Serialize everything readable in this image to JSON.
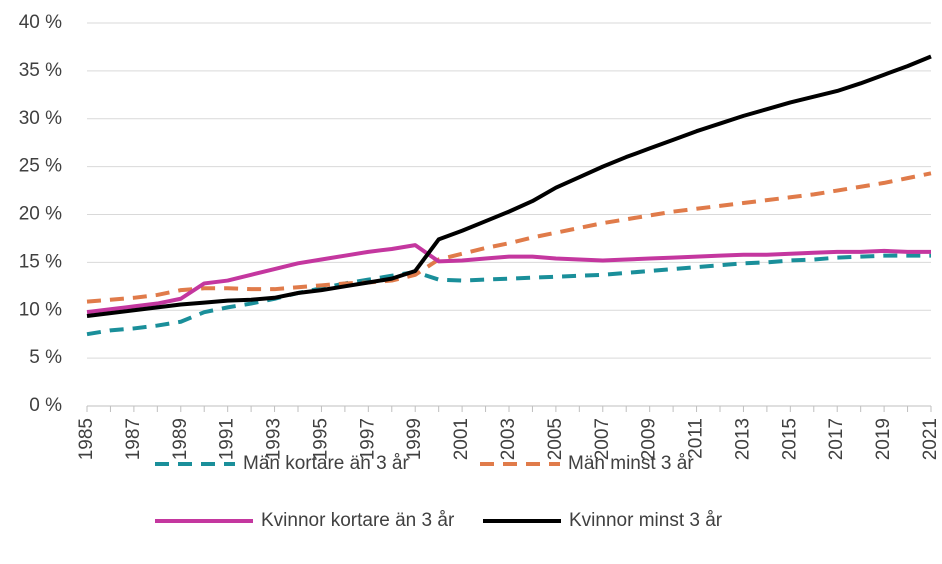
{
  "chart_data": {
    "type": "line",
    "x": [
      1985,
      1986,
      1987,
      1988,
      1989,
      1990,
      1991,
      1992,
      1993,
      1994,
      1995,
      1996,
      1997,
      1998,
      1999,
      2000,
      2001,
      2002,
      2003,
      2004,
      2005,
      2006,
      2007,
      2008,
      2009,
      2010,
      2011,
      2012,
      2013,
      2014,
      2015,
      2016,
      2017,
      2018,
      2019,
      2020,
      2021
    ],
    "xlim": [
      1985,
      2021
    ],
    "xticks": [
      1985,
      1987,
      1989,
      1991,
      1993,
      1995,
      1997,
      1999,
      2001,
      2003,
      2005,
      2007,
      2009,
      2011,
      2013,
      2015,
      2017,
      2019,
      2021
    ],
    "ylim": [
      0,
      40
    ],
    "yticks": [
      {
        "value": 0,
        "label": "0 %"
      },
      {
        "value": 5,
        "label": "5 %"
      },
      {
        "value": 10,
        "label": "10 %"
      },
      {
        "value": 15,
        "label": "15 %"
      },
      {
        "value": 20,
        "label": "20 %"
      },
      {
        "value": 25,
        "label": "25 %"
      },
      {
        "value": 30,
        "label": "30 %"
      },
      {
        "value": 35,
        "label": "35 %"
      },
      {
        "value": 40,
        "label": "40 %"
      }
    ],
    "grid": true,
    "legend": "bottom",
    "series": [
      {
        "name": "Män kortare än 3 år",
        "color": "#1a8f9a",
        "style": "dashed",
        "values": [
          7.5,
          7.9,
          8.1,
          8.4,
          8.8,
          9.8,
          10.3,
          10.7,
          11.2,
          11.8,
          12.3,
          12.8,
          13.2,
          13.6,
          14.0,
          13.2,
          13.1,
          13.2,
          13.3,
          13.4,
          13.5,
          13.6,
          13.7,
          13.9,
          14.1,
          14.3,
          14.5,
          14.7,
          14.9,
          15.0,
          15.2,
          15.3,
          15.5,
          15.6,
          15.7,
          15.7,
          15.7
        ]
      },
      {
        "name": "Män minst 3 år",
        "color": "#e07b4a",
        "style": "dashed",
        "values": [
          10.9,
          11.1,
          11.3,
          11.6,
          12.1,
          12.3,
          12.3,
          12.2,
          12.2,
          12.4,
          12.6,
          12.8,
          12.9,
          13.1,
          13.7,
          15.3,
          15.9,
          16.5,
          17.0,
          17.6,
          18.1,
          18.6,
          19.1,
          19.5,
          19.9,
          20.3,
          20.6,
          20.9,
          21.2,
          21.5,
          21.8,
          22.1,
          22.5,
          22.9,
          23.3,
          23.8,
          24.3
        ]
      },
      {
        "name": "Kvinnor kortare än 3 år",
        "color": "#c4379f",
        "style": "solid",
        "values": [
          9.8,
          10.1,
          10.4,
          10.7,
          11.2,
          12.8,
          13.1,
          13.7,
          14.3,
          14.9,
          15.3,
          15.7,
          16.1,
          16.4,
          16.8,
          15.1,
          15.2,
          15.4,
          15.6,
          15.6,
          15.4,
          15.3,
          15.2,
          15.3,
          15.4,
          15.5,
          15.6,
          15.7,
          15.8,
          15.8,
          15.9,
          16.0,
          16.1,
          16.1,
          16.2,
          16.1,
          16.1
        ]
      },
      {
        "name": "Kvinnor minst 3 år",
        "color": "#000000",
        "style": "solid",
        "values": [
          9.4,
          9.7,
          10.0,
          10.3,
          10.6,
          10.8,
          11.0,
          11.1,
          11.3,
          11.8,
          12.1,
          12.5,
          12.9,
          13.3,
          14.1,
          17.4,
          18.3,
          19.3,
          20.3,
          21.4,
          22.8,
          23.9,
          25.0,
          26.0,
          26.9,
          27.8,
          28.7,
          29.5,
          30.3,
          31.0,
          31.7,
          32.3,
          32.9,
          33.7,
          34.6,
          35.5,
          36.5
        ]
      }
    ]
  }
}
